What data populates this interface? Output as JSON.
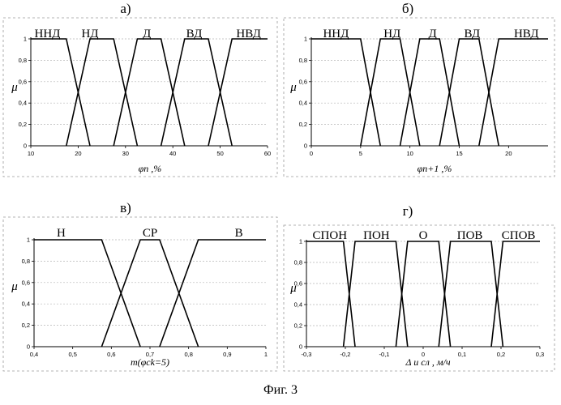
{
  "caption": "Фиг. 3",
  "chart_data": [
    {
      "type": "line",
      "panel": "а)",
      "ylabel": "μ",
      "xlabel": "φn ,%",
      "xlim": [
        10,
        60
      ],
      "ylim": [
        0,
        1
      ],
      "xticks": [
        10,
        20,
        30,
        40,
        50,
        60
      ],
      "xtick_labels": [
        "10",
        "20",
        "30",
        "40",
        "50",
        "60"
      ],
      "yticks": [
        0,
        0.2,
        0.4,
        0.6,
        0.8,
        1
      ],
      "ytick_labels": [
        "0",
        "0,2",
        "0,4",
        "0,6",
        "0,8",
        "1"
      ],
      "grid": true,
      "series": [
        {
          "name": "ННД",
          "x": [
            10,
            17.5,
            22.5
          ],
          "y": [
            1,
            1,
            0
          ]
        },
        {
          "name": "НД",
          "x": [
            17.5,
            22.5,
            27.5,
            32.5
          ],
          "y": [
            0,
            1,
            1,
            0
          ]
        },
        {
          "name": "Д",
          "x": [
            27.5,
            32.5,
            37.5,
            42.5
          ],
          "y": [
            0,
            1,
            1,
            0
          ]
        },
        {
          "name": "ВД",
          "x": [
            37.5,
            42.5,
            47.5,
            52.5
          ],
          "y": [
            0,
            1,
            1,
            0
          ]
        },
        {
          "name": "НВД",
          "x": [
            47.5,
            52.5,
            60
          ],
          "y": [
            0,
            1,
            1
          ]
        }
      ]
    },
    {
      "type": "line",
      "panel": "б)",
      "ylabel": "μ",
      "xlabel": "φn+1 ,%",
      "xlim": [
        0,
        24
      ],
      "ylim": [
        0,
        1
      ],
      "xticks": [
        0,
        5,
        10,
        15,
        20
      ],
      "xtick_labels": [
        "0",
        "5",
        "10",
        "15",
        "20"
      ],
      "yticks": [
        0,
        0.2,
        0.4,
        0.6,
        0.8,
        1
      ],
      "ytick_labels": [
        "0",
        "0,2",
        "0,4",
        "0,6",
        "0,8",
        "1"
      ],
      "grid": true,
      "series": [
        {
          "name": "ННД",
          "x": [
            0,
            5,
            7
          ],
          "y": [
            1,
            1,
            0
          ]
        },
        {
          "name": "НД",
          "x": [
            5,
            7,
            9,
            11
          ],
          "y": [
            0,
            1,
            1,
            0
          ]
        },
        {
          "name": "Д",
          "x": [
            9,
            11,
            13,
            15
          ],
          "y": [
            0,
            1,
            1,
            0
          ]
        },
        {
          "name": "ВД",
          "x": [
            13,
            15,
            17,
            19
          ],
          "y": [
            0,
            1,
            1,
            0
          ]
        },
        {
          "name": "НВД",
          "x": [
            17,
            19,
            24
          ],
          "y": [
            0,
            1,
            1
          ]
        }
      ]
    },
    {
      "type": "line",
      "panel": "в)",
      "ylabel": "μ",
      "xlabel": "m(φck=5)",
      "xlim": [
        0.4,
        1
      ],
      "ylim": [
        0,
        1
      ],
      "xticks": [
        0.4,
        0.5,
        0.6,
        0.7,
        0.8,
        0.9,
        1
      ],
      "xtick_labels": [
        "0,4",
        "0,5",
        "0,6",
        "0,7",
        "0,8",
        "0,9",
        "1"
      ],
      "yticks": [
        0,
        0.2,
        0.4,
        0.6,
        0.8,
        1
      ],
      "ytick_labels": [
        "0",
        "0,2",
        "0,4",
        "0,6",
        "0,8",
        "1"
      ],
      "grid": true,
      "series": [
        {
          "name": "Н",
          "x": [
            0.4,
            0.575,
            0.675
          ],
          "y": [
            1,
            1,
            0
          ]
        },
        {
          "name": "СР",
          "x": [
            0.575,
            0.675,
            0.725,
            0.825
          ],
          "y": [
            0,
            1,
            1,
            0
          ]
        },
        {
          "name": "В",
          "x": [
            0.725,
            0.825,
            1
          ],
          "y": [
            0,
            1,
            1
          ]
        }
      ]
    },
    {
      "type": "line",
      "panel": "г)",
      "ylabel": "μ",
      "xlabel": "Δ u сл , м/ч",
      "xlim": [
        -0.3,
        0.3
      ],
      "ylim": [
        0,
        1
      ],
      "xticks": [
        -0.3,
        -0.2,
        -0.1,
        0,
        0.1,
        0.2,
        0.3
      ],
      "xtick_labels": [
        "-0,3",
        "-0,2",
        "-0,1",
        "0",
        "0,1",
        "0,2",
        "0,3"
      ],
      "yticks": [
        0,
        0.2,
        0.4,
        0.6,
        0.8,
        1
      ],
      "ytick_labels": [
        "0",
        "0,2",
        "0,4",
        "0,6",
        "0,8",
        "1"
      ],
      "grid": true,
      "series": [
        {
          "name": "СПОН",
          "x": [
            -0.3,
            -0.205,
            -0.175
          ],
          "y": [
            1,
            1,
            0
          ]
        },
        {
          "name": "ПОН",
          "x": [
            -0.205,
            -0.175,
            -0.07,
            -0.04
          ],
          "y": [
            0,
            1,
            1,
            0
          ]
        },
        {
          "name": "О",
          "x": [
            -0.07,
            -0.04,
            0.04,
            0.07
          ],
          "y": [
            0,
            1,
            1,
            0
          ]
        },
        {
          "name": "ПОВ",
          "x": [
            0.04,
            0.07,
            0.175,
            0.205
          ],
          "y": [
            0,
            1,
            1,
            0
          ]
        },
        {
          "name": "СПОВ",
          "x": [
            0.175,
            0.205,
            0.3
          ],
          "y": [
            0,
            1,
            1
          ]
        }
      ]
    }
  ]
}
